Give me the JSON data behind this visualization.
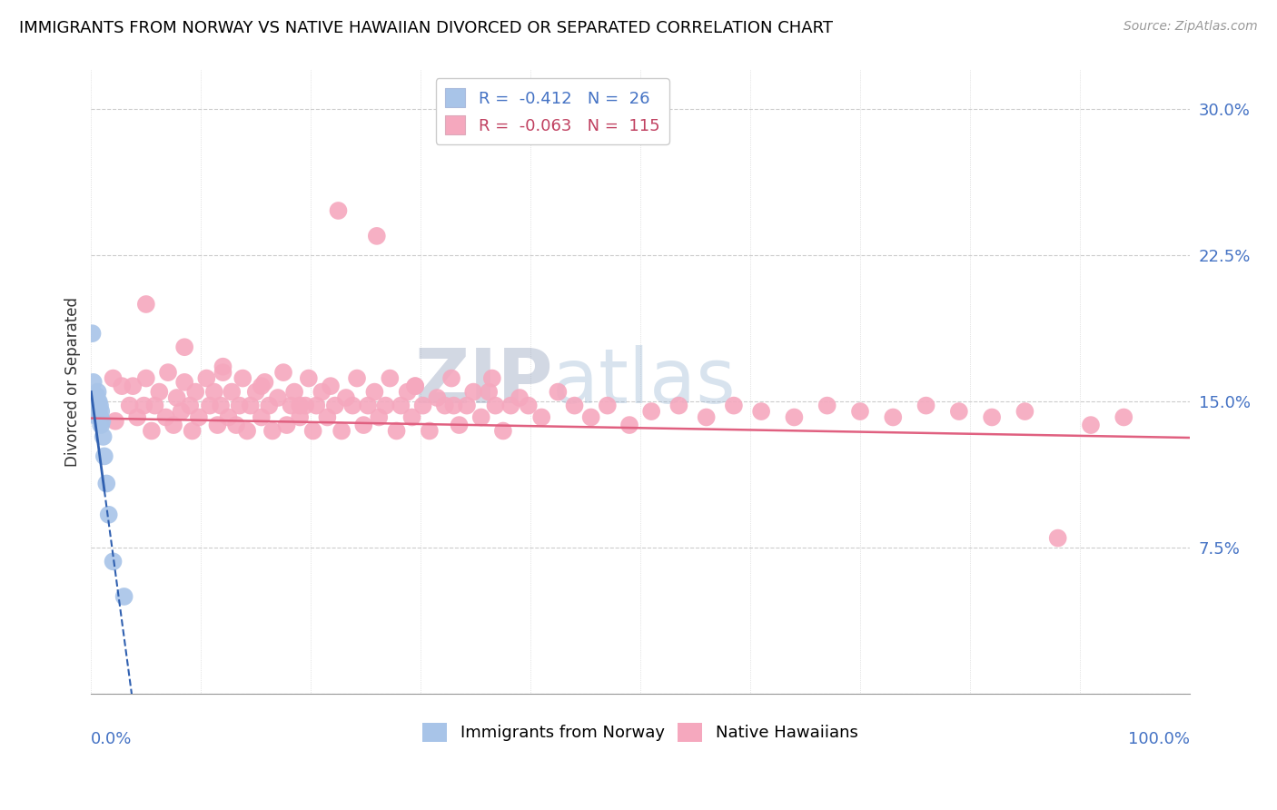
{
  "title": "IMMIGRANTS FROM NORWAY VS NATIVE HAWAIIAN DIVORCED OR SEPARATED CORRELATION CHART",
  "source": "Source: ZipAtlas.com",
  "ylabel": "Divorced or Separated",
  "yticks": [
    0.0,
    0.075,
    0.15,
    0.225,
    0.3
  ],
  "ytick_labels": [
    "",
    "7.5%",
    "15.0%",
    "22.5%",
    "30.0%"
  ],
  "xlim": [
    0.0,
    1.0
  ],
  "ylim": [
    0.0,
    0.32
  ],
  "norway_R": -0.412,
  "norway_N": 26,
  "hawaii_R": -0.063,
  "hawaii_N": 115,
  "norway_color": "#a8c4e8",
  "hawaii_color": "#f5a8be",
  "norway_line_color": "#3060b0",
  "hawaii_line_color": "#e06080",
  "watermark_color": "#c8d8ee",
  "norway_x": [
    0.001,
    0.002,
    0.002,
    0.003,
    0.003,
    0.004,
    0.004,
    0.005,
    0.005,
    0.005,
    0.006,
    0.006,
    0.006,
    0.007,
    0.007,
    0.008,
    0.008,
    0.009,
    0.009,
    0.01,
    0.011,
    0.012,
    0.014,
    0.016,
    0.02,
    0.03
  ],
  "norway_y": [
    0.185,
    0.16,
    0.145,
    0.152,
    0.143,
    0.153,
    0.148,
    0.153,
    0.148,
    0.143,
    0.155,
    0.15,
    0.145,
    0.15,
    0.145,
    0.148,
    0.142,
    0.145,
    0.138,
    0.14,
    0.132,
    0.122,
    0.108,
    0.092,
    0.068,
    0.05
  ],
  "hawaii_x": [
    0.02,
    0.022,
    0.028,
    0.035,
    0.038,
    0.042,
    0.048,
    0.05,
    0.055,
    0.058,
    0.062,
    0.068,
    0.07,
    0.075,
    0.078,
    0.082,
    0.085,
    0.09,
    0.092,
    0.095,
    0.098,
    0.105,
    0.108,
    0.112,
    0.115,
    0.118,
    0.12,
    0.125,
    0.128,
    0.132,
    0.135,
    0.138,
    0.142,
    0.145,
    0.15,
    0.155,
    0.158,
    0.162,
    0.165,
    0.17,
    0.175,
    0.178,
    0.182,
    0.185,
    0.19,
    0.195,
    0.198,
    0.202,
    0.205,
    0.21,
    0.215,
    0.218,
    0.222,
    0.228,
    0.232,
    0.238,
    0.242,
    0.248,
    0.252,
    0.258,
    0.262,
    0.268,
    0.272,
    0.278,
    0.282,
    0.288,
    0.292,
    0.295,
    0.302,
    0.308,
    0.315,
    0.322,
    0.328,
    0.335,
    0.342,
    0.348,
    0.355,
    0.362,
    0.368,
    0.375,
    0.382,
    0.39,
    0.398,
    0.41,
    0.425,
    0.44,
    0.455,
    0.47,
    0.49,
    0.51,
    0.535,
    0.56,
    0.585,
    0.61,
    0.64,
    0.67,
    0.7,
    0.73,
    0.76,
    0.79,
    0.82,
    0.85,
    0.88,
    0.91,
    0.94,
    0.05,
    0.085,
    0.12,
    0.155,
    0.19,
    0.225,
    0.26,
    0.295,
    0.33,
    0.365
  ],
  "hawaii_y": [
    0.162,
    0.14,
    0.158,
    0.148,
    0.158,
    0.142,
    0.148,
    0.162,
    0.135,
    0.148,
    0.155,
    0.142,
    0.165,
    0.138,
    0.152,
    0.145,
    0.16,
    0.148,
    0.135,
    0.155,
    0.142,
    0.162,
    0.148,
    0.155,
    0.138,
    0.148,
    0.165,
    0.142,
    0.155,
    0.138,
    0.148,
    0.162,
    0.135,
    0.148,
    0.155,
    0.142,
    0.16,
    0.148,
    0.135,
    0.152,
    0.165,
    0.138,
    0.148,
    0.155,
    0.142,
    0.148,
    0.162,
    0.135,
    0.148,
    0.155,
    0.142,
    0.158,
    0.148,
    0.135,
    0.152,
    0.148,
    0.162,
    0.138,
    0.148,
    0.155,
    0.142,
    0.148,
    0.162,
    0.135,
    0.148,
    0.155,
    0.142,
    0.158,
    0.148,
    0.135,
    0.152,
    0.148,
    0.162,
    0.138,
    0.148,
    0.155,
    0.142,
    0.155,
    0.148,
    0.135,
    0.148,
    0.152,
    0.148,
    0.142,
    0.155,
    0.148,
    0.142,
    0.148,
    0.138,
    0.145,
    0.148,
    0.142,
    0.148,
    0.145,
    0.142,
    0.148,
    0.145,
    0.142,
    0.148,
    0.145,
    0.142,
    0.145,
    0.08,
    0.138,
    0.142,
    0.2,
    0.178,
    0.168,
    0.158,
    0.148,
    0.248,
    0.235,
    0.158,
    0.148,
    0.162
  ],
  "hawaii_low_x": [
    0.882
  ],
  "hawaii_low_y": [
    0.08
  ],
  "hawaii_line_x0": 0.0,
  "hawaii_line_x1": 1.0,
  "hawaii_line_y0": 0.1415,
  "hawaii_line_y1": 0.1315,
  "norway_line_solid_x0": 0.0,
  "norway_line_solid_x1": 0.012,
  "norway_line_dash_x1": 0.2,
  "norway_line_y_intercept": 0.155,
  "norway_line_slope": -4.2
}
